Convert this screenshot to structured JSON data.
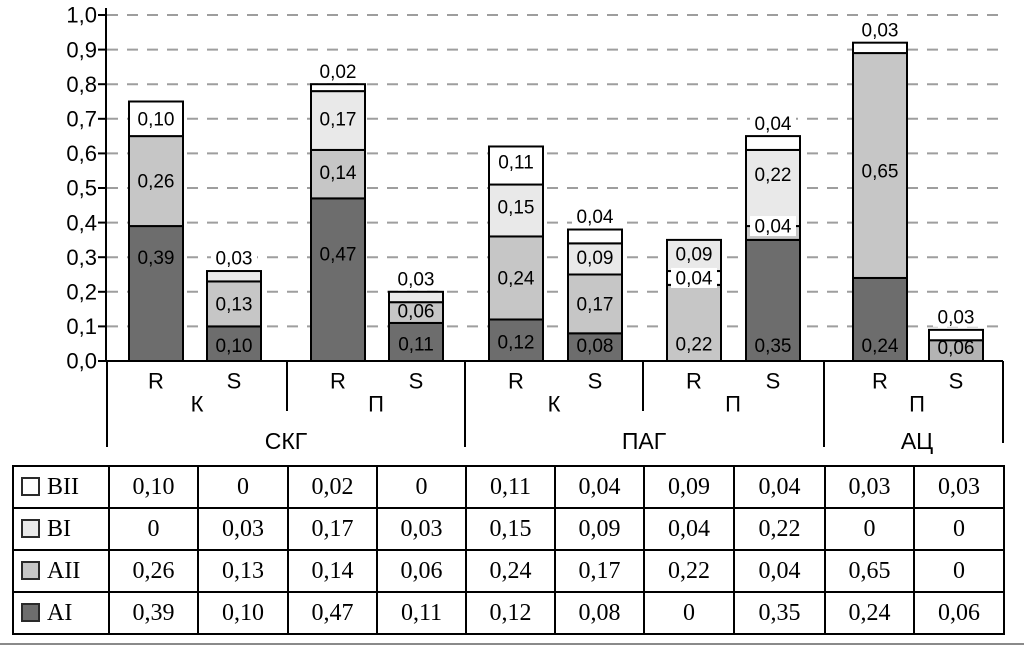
{
  "figure": {
    "background": "#ffffff",
    "grid_color": "#9e9e9e",
    "axis_color": "#000000",
    "label_color": "#000000"
  },
  "chart_data": {
    "type": "bar",
    "variant": "stacked-vertical",
    "title": "",
    "xlabel": "",
    "ylabel": "",
    "ylim": [
      0,
      1.0
    ],
    "grid": "dashed-horizontal",
    "y_axis": {
      "min": 0,
      "max": 1.0,
      "step": 0.1,
      "tick_labels": [
        "1,0",
        "0,9",
        "0,8",
        "0,7",
        "0,6",
        "0,5",
        "0,4",
        "0,3",
        "0,2",
        "0,1",
        "0,0"
      ]
    },
    "series_stack_order_bottom_to_top": [
      "AI",
      "AII",
      "BI",
      "BII"
    ],
    "series": [
      {
        "name": "BII",
        "color": "#ffffff"
      },
      {
        "name": "BI",
        "color": "#e9e9e9"
      },
      {
        "name": "AII",
        "color": "#c6c6c6"
      },
      {
        "name": "AI",
        "color": "#6d6d6d"
      }
    ],
    "x_axis": {
      "bar_labels": [
        "R",
        "S",
        "R",
        "S",
        "R",
        "S",
        "R",
        "S",
        "R",
        "S"
      ],
      "subgroup_labels": [
        "К",
        "П",
        "К",
        "П",
        "П"
      ],
      "group_labels": [
        "СКГ",
        "ПАГ",
        "АЦ"
      ]
    },
    "bars": [
      {
        "group": "СКГ",
        "subgroup": "К",
        "label": "R",
        "segments": [
          {
            "series": "AI",
            "value": 0.39,
            "label": "0,39",
            "label_pos": "inside",
            "label_at": 0.3
          },
          {
            "series": "AII",
            "value": 0.26,
            "label": "0,26",
            "label_pos": "inside",
            "label_at": 0.52
          },
          {
            "series": "BII",
            "value": 0.1,
            "label": "0,10",
            "label_pos": "inside",
            "label_at": 0.7
          }
        ]
      },
      {
        "group": "СКГ",
        "subgroup": "К",
        "label": "S",
        "segments": [
          {
            "series": "AI",
            "value": 0.1,
            "label": "0,10",
            "label_pos": "inside",
            "label_at": 0.045
          },
          {
            "series": "AII",
            "value": 0.13,
            "label": "0,13",
            "label_pos": "inside",
            "label_at": 0.165
          },
          {
            "series": "BI",
            "value": 0.03,
            "label": "0,03",
            "label_pos": "above"
          }
        ]
      },
      {
        "group": "СКГ",
        "subgroup": "П",
        "label": "R",
        "segments": [
          {
            "series": "AI",
            "value": 0.47,
            "label": "0,47",
            "label_pos": "inside",
            "label_at": 0.31
          },
          {
            "series": "AII",
            "value": 0.14,
            "label": "0,14",
            "label_pos": "inside",
            "label_at": 0.545
          },
          {
            "series": "BI",
            "value": 0.17,
            "label": "0,17",
            "label_pos": "inside",
            "label_at": 0.7
          },
          {
            "series": "BII",
            "value": 0.02,
            "label": "0,02",
            "label_pos": "above"
          }
        ]
      },
      {
        "group": "СКГ",
        "subgroup": "П",
        "label": "S",
        "segments": [
          {
            "series": "AI",
            "value": 0.11,
            "label": "0,11",
            "label_pos": "inside",
            "label_at": 0.05
          },
          {
            "series": "AII",
            "value": 0.06,
            "label": "0,06",
            "label_pos": "inside",
            "label_at": 0.145
          },
          {
            "series": "BI",
            "value": 0.03,
            "label": "0,03",
            "label_pos": "above"
          }
        ]
      },
      {
        "group": "ПАГ",
        "subgroup": "К",
        "label": "R",
        "segments": [
          {
            "series": "AI",
            "value": 0.12,
            "label": "0,12",
            "label_pos": "inside",
            "label_at": 0.055
          },
          {
            "series": "AII",
            "value": 0.24,
            "label": "0,24",
            "label_pos": "inside",
            "label_at": 0.24
          },
          {
            "series": "BI",
            "value": 0.15,
            "label": "0,15",
            "label_pos": "inside",
            "label_at": 0.445
          },
          {
            "series": "BII",
            "value": 0.11,
            "label": "0,11",
            "label_pos": "inside",
            "label_at": 0.575
          }
        ]
      },
      {
        "group": "ПАГ",
        "subgroup": "К",
        "label": "S",
        "segments": [
          {
            "series": "AI",
            "value": 0.08,
            "label": "0,08",
            "label_pos": "inside",
            "label_at": 0.045
          },
          {
            "series": "AII",
            "value": 0.17,
            "label": "0,17",
            "label_pos": "inside",
            "label_at": 0.165
          },
          {
            "series": "BI",
            "value": 0.09,
            "label": "0,09",
            "label_pos": "inside",
            "label_at": 0.3
          },
          {
            "series": "BII",
            "value": 0.04,
            "label": "0,04",
            "label_pos": "above"
          }
        ]
      },
      {
        "group": "ПАГ",
        "subgroup": "П",
        "label": "R",
        "segments": [
          {
            "series": "AII",
            "value": 0.22,
            "label": "0,22",
            "label_pos": "inside",
            "label_at": 0.05
          },
          {
            "series": "BI",
            "value": 0.04,
            "label": "0,04",
            "label_pos": "boxed",
            "label_at": 0.24,
            "color_override": "#ffffff"
          },
          {
            "series": "BII",
            "value": 0.09,
            "label": "0,09",
            "label_pos": "inside",
            "label_at": 0.31,
            "color_override": "#e9e9e9"
          }
        ]
      },
      {
        "group": "ПАГ",
        "subgroup": "П",
        "label": "S",
        "segments": [
          {
            "series": "AI",
            "value": 0.35,
            "label": "0,35",
            "label_pos": "inside",
            "label_at": 0.045
          },
          {
            "series": "AII",
            "value": 0.04,
            "label": "0,04",
            "label_pos": "boxed",
            "label_at": 0.39
          },
          {
            "series": "BI",
            "value": 0.22,
            "label": "0,22",
            "label_pos": "inside",
            "label_at": 0.54
          },
          {
            "series": "BII",
            "value": 0.04,
            "label": "0,04",
            "label_pos": "above"
          }
        ]
      },
      {
        "group": "АЦ",
        "subgroup": "П",
        "label": "R",
        "segments": [
          {
            "series": "AI",
            "value": 0.24,
            "label": "0,24",
            "label_pos": "inside",
            "label_at": 0.045
          },
          {
            "series": "AII",
            "value": 0.65,
            "label": "0,65",
            "label_pos": "inside",
            "label_at": 0.55
          },
          {
            "series": "BII",
            "value": 0.03,
            "label": "0,03",
            "label_pos": "above"
          }
        ]
      },
      {
        "group": "АЦ",
        "subgroup": "П",
        "label": "S",
        "segments": [
          {
            "series": "AI",
            "value": 0.06,
            "label": "0,06",
            "label_pos": "inside",
            "label_at": 0.04,
            "color_override": "#b3b3b3"
          },
          {
            "series": "BII",
            "value": 0.03,
            "label": "0,03",
            "label_pos": "above"
          }
        ]
      }
    ]
  },
  "table": {
    "rows": [
      {
        "series": "BII",
        "swatch_color": "#ffffff",
        "values": [
          "0,10",
          "0",
          "0,02",
          "0",
          "0,11",
          "0,04",
          "0,09",
          "0,04",
          "0,03",
          "0,03"
        ]
      },
      {
        "series": "BI",
        "swatch_color": "#e9e9e9",
        "values": [
          "0",
          "0,03",
          "0,17",
          "0,03",
          "0,15",
          "0,09",
          "0,04",
          "0,22",
          "0",
          "0"
        ]
      },
      {
        "series": "AII",
        "swatch_color": "#c6c6c6",
        "values": [
          "0,26",
          "0,13",
          "0,14",
          "0,06",
          "0,24",
          "0,17",
          "0,22",
          "0,04",
          "0,65",
          "0"
        ]
      },
      {
        "series": "AI",
        "swatch_color": "#6d6d6d",
        "values": [
          "0,39",
          "0,10",
          "0,47",
          "0,11",
          "0,12",
          "0,08",
          "0",
          "0,35",
          "0,24",
          "0,06"
        ]
      }
    ]
  }
}
